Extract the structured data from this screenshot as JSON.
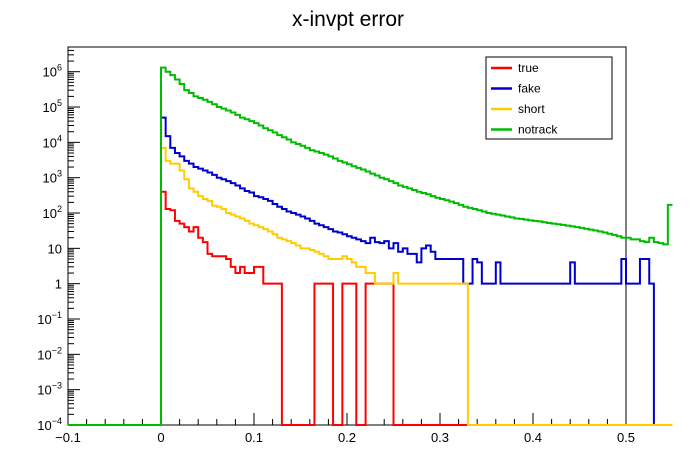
{
  "chart_data": {
    "type": "line",
    "title": "x-invpt error",
    "xlabel": "",
    "ylabel": "",
    "xlim": [
      -0.1,
      0.5
    ],
    "ylim": [
      0.0001,
      5000000
    ],
    "y_scale": "log",
    "grid": false,
    "legend_position": "top-right",
    "x_ticks": [
      {
        "value": -0.1,
        "label": "−0.1"
      },
      {
        "value": 0,
        "label": "0"
      },
      {
        "value": 0.1,
        "label": "0.1"
      },
      {
        "value": 0.2,
        "label": "0.2"
      },
      {
        "value": 0.3,
        "label": "0.3"
      },
      {
        "value": 0.4,
        "label": "0.4"
      },
      {
        "value": 0.5,
        "label": "0.5"
      }
    ],
    "y_ticks": [
      {
        "value": 0.0001,
        "base": "10",
        "exp": "−4"
      },
      {
        "value": 0.001,
        "base": "10",
        "exp": "−3"
      },
      {
        "value": 0.01,
        "base": "10",
        "exp": "−2"
      },
      {
        "value": 0.1,
        "base": "10",
        "exp": "−1"
      },
      {
        "value": 1,
        "base": "1",
        "exp": ""
      },
      {
        "value": 10,
        "base": "10",
        "exp": ""
      },
      {
        "value": 100,
        "base": "10",
        "exp": "2"
      },
      {
        "value": 1000,
        "base": "10",
        "exp": "3"
      },
      {
        "value": 10000,
        "base": "10",
        "exp": "4"
      },
      {
        "value": 100000,
        "base": "10",
        "exp": "5"
      },
      {
        "value": 1000000,
        "base": "10",
        "exp": "6"
      }
    ],
    "bin_edges_start": -0.1,
    "bin_width": 0.005,
    "series": [
      {
        "name": "true",
        "color": "#ff0000",
        "values": [
          0,
          0,
          0,
          0,
          0,
          0,
          0,
          0,
          0,
          0,
          0,
          0,
          0,
          0,
          0,
          0,
          0,
          0,
          0,
          0,
          400,
          130,
          120,
          60,
          50,
          40,
          30,
          40,
          20,
          15,
          7,
          6,
          6,
          6,
          5,
          3,
          2,
          3,
          2,
          2,
          3,
          3,
          1,
          1,
          1,
          1,
          0,
          0,
          0,
          0,
          0,
          0,
          0,
          1,
          1,
          1,
          1,
          0,
          0,
          1,
          1,
          1,
          0,
          0,
          1,
          1,
          1,
          1,
          1,
          1,
          0,
          0,
          0,
          0,
          0,
          0,
          0,
          0,
          0,
          0,
          0,
          0,
          0,
          0,
          0,
          0,
          0,
          0,
          0,
          0,
          0,
          0,
          0,
          0,
          0,
          0,
          0,
          0,
          0,
          0,
          0,
          0,
          0,
          0,
          0,
          0,
          0,
          0,
          0,
          0,
          0,
          0,
          0,
          0,
          0,
          0,
          0,
          0,
          0,
          0,
          0,
          0,
          0,
          0,
          0,
          0,
          0,
          0,
          0,
          0
        ]
      },
      {
        "name": "fake",
        "color": "#0000cc",
        "values": [
          0,
          0,
          0,
          0,
          0,
          0,
          0,
          0,
          0,
          0,
          0,
          0,
          0,
          0,
          0,
          0,
          0,
          0,
          0,
          0,
          50000,
          15000,
          7000,
          5000,
          4000,
          3000,
          2500,
          2000,
          1800,
          1600,
          1400,
          1200,
          1000,
          900,
          800,
          700,
          600,
          500,
          420,
          380,
          300,
          280,
          250,
          220,
          180,
          150,
          130,
          110,
          100,
          90,
          80,
          70,
          60,
          50,
          45,
          40,
          35,
          30,
          28,
          25,
          22,
          20,
          18,
          16,
          14,
          20,
          15,
          14,
          16,
          10,
          14,
          8,
          10,
          7,
          7,
          4,
          10,
          12,
          8,
          5,
          5,
          5,
          5,
          5,
          5,
          1,
          1,
          5,
          4,
          1,
          1,
          1,
          4,
          1,
          1,
          1,
          1,
          1,
          1,
          1,
          1,
          1,
          1,
          1,
          1,
          1,
          1,
          1,
          4,
          1,
          1,
          1,
          1,
          1,
          1,
          1,
          1,
          1,
          1,
          5,
          1,
          1,
          1,
          5,
          5,
          1,
          0.0001,
          0.0001,
          0.0001,
          0.0001
        ]
      },
      {
        "name": "short",
        "color": "#ffcc00",
        "values": [
          0,
          0,
          0,
          0,
          0,
          0,
          0,
          0,
          0,
          0,
          0,
          0,
          0,
          0,
          0,
          0,
          0,
          0,
          0,
          0,
          7000,
          3000,
          2500,
          2500,
          1600,
          900,
          500,
          400,
          300,
          250,
          220,
          160,
          150,
          130,
          100,
          90,
          80,
          70,
          60,
          50,
          45,
          40,
          35,
          30,
          25,
          20,
          18,
          16,
          14,
          12,
          10,
          10,
          9,
          8,
          7,
          6,
          5,
          5,
          5,
          6,
          5,
          4,
          3,
          3,
          2,
          2,
          1,
          1,
          1,
          1,
          2,
          1,
          1,
          1,
          1,
          1,
          1,
          1,
          1,
          1,
          1,
          1,
          1,
          1,
          1,
          1,
          0,
          0,
          0,
          0,
          0,
          0,
          0,
          0,
          0,
          0,
          0,
          0,
          0,
          0,
          0,
          0,
          0,
          0,
          0,
          0,
          0,
          0,
          0,
          0,
          0,
          0,
          0,
          0,
          0,
          0,
          0,
          0,
          0,
          0,
          0,
          0,
          0,
          0,
          0,
          0,
          0,
          0,
          0,
          0
        ]
      },
      {
        "name": "notrack",
        "color": "#00bb00",
        "values": [
          0,
          0,
          0,
          0,
          0,
          0,
          0,
          0,
          0,
          0,
          0,
          0,
          0,
          0,
          0,
          0,
          0,
          0,
          0,
          0,
          1300000,
          1000000,
          800000,
          600000,
          450000,
          300000,
          250000,
          200000,
          180000,
          160000,
          140000,
          120000,
          100000,
          90000,
          80000,
          70000,
          60000,
          50000,
          45000,
          40000,
          35000,
          30000,
          25000,
          22000,
          19000,
          16000,
          14000,
          12000,
          10000,
          9000,
          8000,
          7000,
          6000,
          5500,
          5000,
          4500,
          4000,
          3500,
          3000,
          2700,
          2400,
          2100,
          1900,
          1700,
          1500,
          1300,
          1150,
          1000,
          900,
          800,
          700,
          600,
          550,
          500,
          450,
          400,
          370,
          340,
          300,
          270,
          250,
          230,
          210,
          190,
          170,
          150,
          140,
          130,
          120,
          110,
          100,
          95,
          90,
          85,
          80,
          75,
          70,
          68,
          65,
          62,
          60,
          58,
          55,
          52,
          50,
          48,
          46,
          44,
          42,
          40,
          38,
          36,
          34,
          32,
          30,
          28,
          26,
          24,
          22,
          20,
          20,
          18,
          18,
          16,
          15,
          20,
          15,
          14,
          13,
          170
        ]
      }
    ]
  }
}
